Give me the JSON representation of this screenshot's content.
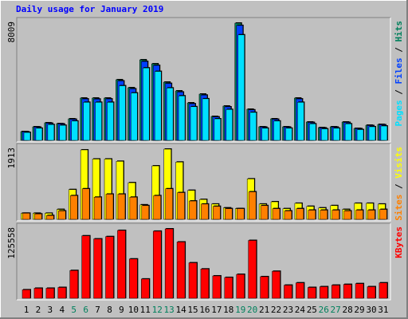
{
  "chart_data": [
    {
      "type": "bar",
      "title": "Daily usage for January 2019",
      "title_color": "#0000ff",
      "legend_separator": " / ",
      "series": [
        {
          "name": "Hits",
          "color": "#00805c",
          "values": [
            599,
            926,
            1199,
            1144,
            1471,
            2888,
            2888,
            2888,
            4141,
            3596,
            5503,
            5230,
            3977,
            3378,
            2561,
            3160,
            1635,
            2343,
            8009,
            2125,
            926,
            1471,
            926,
            2888,
            1253,
            872,
            926,
            1253,
            817,
            1035,
            1090
          ]
        },
        {
          "name": "Files",
          "color": "#0040ff",
          "values": [
            585,
            905,
            1170,
            1120,
            1440,
            2830,
            2820,
            2830,
            4060,
            3520,
            5390,
            5120,
            3890,
            3300,
            2500,
            3090,
            1600,
            2290,
            7850,
            2080,
            905,
            1440,
            905,
            2830,
            1225,
            850,
            905,
            1225,
            800,
            1010,
            1065
          ]
        },
        {
          "name": "Pages",
          "color": "#00e0ff",
          "values": [
            540,
            830,
            1080,
            1030,
            1320,
            2600,
            2600,
            2600,
            3730,
            3240,
            4950,
            4710,
            3580,
            3040,
            2300,
            2840,
            1470,
            2110,
            7210,
            1910,
            830,
            1320,
            830,
            2600,
            1130,
            785,
            830,
            1130,
            735,
            930,
            980
          ]
        }
      ],
      "ylim": [
        0,
        8009
      ],
      "yticks": [
        8009
      ]
    },
    {
      "type": "bar",
      "series": [
        {
          "name": "Visits",
          "color": "#ffff00",
          "values": [
            166,
            166,
            166,
            270,
            811,
            1892,
            1643,
            1643,
            1581,
            998,
            395,
            1456,
            1913,
            1560,
            790,
            541,
            416,
            312,
            291,
            1102,
            416,
            478,
            291,
            437,
            354,
            312,
            374,
            270,
            437,
            437,
            416
          ]
        },
        {
          "name": "Sites",
          "color": "#ff8000",
          "values": [
            166,
            146,
            104,
            229,
            645,
            832,
            603,
            686,
            686,
            603,
            374,
            645,
            832,
            728,
            499,
            416,
            354,
            291,
            291,
            749,
            374,
            291,
            229,
            291,
            250,
            250,
            250,
            229,
            250,
            250,
            270
          ]
        }
      ],
      "ylim": [
        0,
        1913
      ],
      "yticks": [
        1913
      ]
    },
    {
      "type": "bar",
      "series": [
        {
          "name": "KBytes",
          "color": "#ff0000",
          "values": [
            15345,
            18135,
            18135,
            19530,
            50223,
            113000,
            107415,
            111600,
            122760,
            71145,
            34875,
            121365,
            125558,
            101835,
            64170,
            53010,
            40455,
            37665,
            43245,
            104625,
            39060,
            48825,
            23715,
            27900,
            19530,
            20925,
            23715,
            25110,
            26505,
            20925,
            27900
          ]
        }
      ],
      "ylim": [
        0,
        125558
      ],
      "yticks": [
        125558
      ],
      "categories": [
        "1",
        "2",
        "3",
        "4",
        "5",
        "6",
        "7",
        "8",
        "9",
        "10",
        "11",
        "12",
        "13",
        "14",
        "15",
        "16",
        "17",
        "18",
        "19",
        "20",
        "21",
        "22",
        "23",
        "24",
        "25",
        "26",
        "27",
        "28",
        "29",
        "30",
        "31"
      ],
      "category_colors": [
        "#000000",
        "#000000",
        "#000000",
        "#000000",
        "#00805c",
        "#00805c",
        "#000000",
        "#000000",
        "#000000",
        "#000000",
        "#000000",
        "#00805c",
        "#00805c",
        "#000000",
        "#000000",
        "#000000",
        "#000000",
        "#000000",
        "#00805c",
        "#00805c",
        "#000000",
        "#000000",
        "#000000",
        "#000000",
        "#000000",
        "#00805c",
        "#00805c",
        "#000000",
        "#000000",
        "#000000",
        "#000000"
      ]
    }
  ]
}
